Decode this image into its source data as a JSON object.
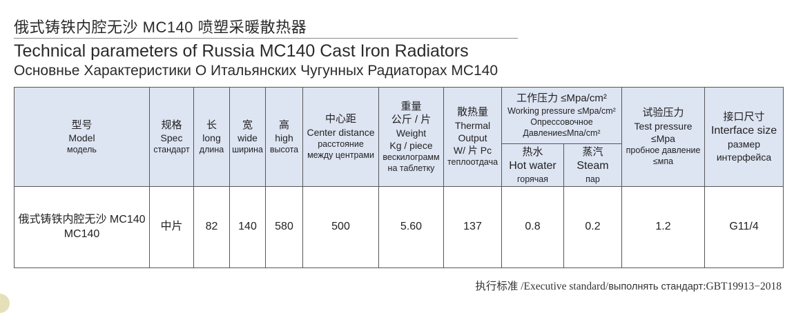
{
  "title": {
    "cn": "俄式铸铁内腔无沙 MC140 喷塑采暖散热器",
    "en": "Technical parameters of  Russia MC140 Cast Iron Radiators",
    "ru": "Основнье Характеристики О Итальянских Чугунных Радиаторах MC140"
  },
  "headers": {
    "model": {
      "cn": "型号",
      "en": "Model",
      "ru": "модель"
    },
    "spec": {
      "cn": "规格",
      "en": "Spec",
      "ru": "стандарт"
    },
    "long": {
      "cn": "长",
      "en": "long",
      "ru": "длина"
    },
    "wide": {
      "cn": "宽",
      "en": "wide",
      "ru": "ширина"
    },
    "high": {
      "cn": "高",
      "en": "high",
      "ru": "высота"
    },
    "center": {
      "cn": "中心距",
      "en": "Center distance",
      "ru1": "расстояние",
      "ru2": "между центрами"
    },
    "weight": {
      "cn1": "重量",
      "cn2": "公斤 / 片",
      "en1": "Weight",
      "en2": "Kg / piece",
      "ru1": "вескилограмм",
      "ru2": "на таблетку"
    },
    "thermal": {
      "cn": "散热量",
      "en1": "Thermal",
      "en2": "Output",
      "en3": "W/ 片 Pc",
      "ru": "теплоотдача"
    },
    "working": {
      "cn": "工作压力 ≤Mpa/cm²",
      "en": "Working pressure ≤Mpa/cm²",
      "ru1": "Опрессовочное",
      "ru2": "Давление≤Мпа/cm²"
    },
    "hot": {
      "cn": "热水",
      "en": "Hot water",
      "ru": "горячая"
    },
    "steam": {
      "cn": "蒸汽",
      "en": "Steam",
      "ru": "пар"
    },
    "test": {
      "cn": "试验压力",
      "en1": "Test pressure",
      "en2": "≤Mpa",
      "ru1": "пробное давление",
      "ru2": "≤мпа"
    },
    "interface": {
      "cn": "接口尺寸",
      "en": "Interface size",
      "ru1": "размер",
      "ru2": "интерфейса"
    }
  },
  "row": {
    "model_line1": "俄式铸铁内腔无沙 MC140",
    "model_line2": "MC140",
    "spec": "中片",
    "long": "82",
    "wide": "140",
    "high": "580",
    "center": "500",
    "weight": "5.60",
    "thermal": "137",
    "hot": "0.8",
    "steam": "0.2",
    "test": "1.2",
    "interface": "G11/4"
  },
  "footer": {
    "cn": "执行标准",
    "en": " /Executive standard/",
    "ru": "выполнять стандарт",
    "code": ":GBT19913−2018"
  },
  "colors": {
    "header_bg": "#dde4f2",
    "border": "#555555"
  }
}
